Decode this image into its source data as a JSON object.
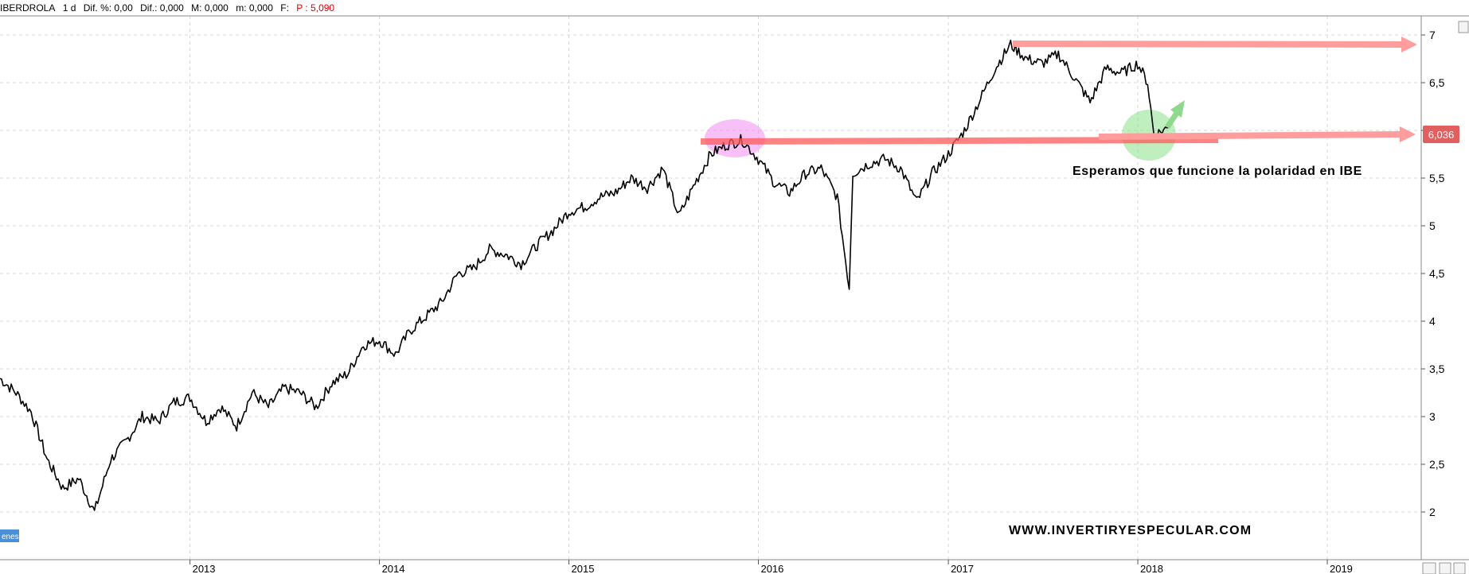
{
  "header": {
    "symbol": "IBERDROLA",
    "period": "1 d",
    "dif_pct": "Dif. %: 0,00",
    "dif": "Dif.: 0,000",
    "m": "M: 0,000",
    "m2": "m: 0,000",
    "f": "F:",
    "price": "P : 5,090"
  },
  "annotation_text": "Esperamos que funcione la polaridad en IBE",
  "watermark": "WWW.INVERTIRYESPECULAR.COM",
  "corner_label": "enes",
  "current_price_label": "6,036",
  "colors": {
    "line": "#000000",
    "resistance_arrow": "#ff9c9c",
    "support_line": "#ff5a5a",
    "pink_circle": "#f08cf0",
    "green_circle": "#7fe07f",
    "green_arrow": "#8fd98f",
    "price_tag": "#e06060",
    "grid": "#d8d8d8"
  },
  "chart_data": {
    "type": "line",
    "title": "",
    "xlabel": "",
    "ylabel": "",
    "ylim": [
      1.5,
      7.2
    ],
    "xlim": [
      "2012-01-01",
      "2019-07-01"
    ],
    "yticks": [
      "7",
      "6,5",
      "6",
      "5,5",
      "5",
      "4,5",
      "4",
      "3,5",
      "3",
      "2,5",
      "2"
    ],
    "ytick_values": [
      7,
      6.5,
      6,
      5.5,
      5,
      4.5,
      4,
      3.5,
      3,
      2.5,
      2
    ],
    "xticks": [
      "2013",
      "2014",
      "2015",
      "2016",
      "2017",
      "2018",
      "2019"
    ],
    "xtick_values": [
      "2013-01-01",
      "2014-01-01",
      "2015-01-01",
      "2016-01-01",
      "2017-01-01",
      "2018-01-01",
      "2019-01-01"
    ],
    "grid": true,
    "series": [
      {
        "x": [
          "2012-01-01",
          "2012-02-01",
          "2012-03-01",
          "2012-04-01",
          "2012-05-01",
          "2012-06-01",
          "2012-07-01",
          "2012-08-01",
          "2012-09-01",
          "2012-10-01",
          "2012-11-01",
          "2012-12-01",
          "2013-01-01",
          "2013-02-01",
          "2013-03-01",
          "2013-04-01",
          "2013-05-01",
          "2013-06-01",
          "2013-07-01",
          "2013-08-01",
          "2013-09-01",
          "2013-10-01",
          "2013-11-01",
          "2013-12-01",
          "2014-01-01",
          "2014-02-01",
          "2014-03-01",
          "2014-04-01",
          "2014-05-01",
          "2014-06-01",
          "2014-07-01",
          "2014-08-01",
          "2014-09-01",
          "2014-10-01",
          "2014-11-01",
          "2014-12-01",
          "2015-01-01",
          "2015-02-01",
          "2015-03-01",
          "2015-04-01",
          "2015-05-01",
          "2015-06-01",
          "2015-07-01",
          "2015-08-01",
          "2015-09-01",
          "2015-10-01",
          "2015-11-01",
          "2015-12-01",
          "2016-01-01",
          "2016-02-01",
          "2016-03-01",
          "2016-04-01",
          "2016-05-01",
          "2016-06-01",
          "2016-06-24",
          "2016-07-01",
          "2016-08-01",
          "2016-09-01",
          "2016-10-01",
          "2016-11-01",
          "2016-12-01",
          "2017-01-01",
          "2017-02-01",
          "2017-03-01",
          "2017-04-01",
          "2017-05-01",
          "2017-06-01",
          "2017-07-01",
          "2017-08-01",
          "2017-09-01",
          "2017-10-01",
          "2017-11-01",
          "2017-12-01",
          "2018-01-01",
          "2018-01-20",
          "2018-02-01",
          "2018-03-01"
        ],
        "values": [
          3.4,
          3.25,
          3.05,
          2.55,
          2.25,
          2.35,
          2.0,
          2.55,
          2.75,
          3.0,
          2.95,
          3.15,
          3.2,
          2.95,
          3.1,
          2.9,
          3.25,
          3.1,
          3.3,
          3.25,
          3.1,
          3.35,
          3.45,
          3.75,
          3.8,
          3.65,
          3.9,
          4.05,
          4.2,
          4.5,
          4.55,
          4.75,
          4.7,
          4.6,
          4.8,
          4.95,
          5.15,
          5.2,
          5.3,
          5.35,
          5.5,
          5.4,
          5.6,
          5.1,
          5.45,
          5.75,
          5.85,
          5.9,
          5.7,
          5.45,
          5.35,
          5.55,
          5.6,
          5.3,
          4.35,
          5.55,
          5.65,
          5.7,
          5.6,
          5.25,
          5.55,
          5.75,
          6.0,
          6.3,
          6.65,
          6.9,
          6.75,
          6.7,
          6.8,
          6.55,
          6.3,
          6.65,
          6.6,
          6.7,
          6.5,
          5.95,
          6.03
        ]
      }
    ],
    "annotations": [
      "Esperamos que funcione la polaridad en IBE"
    ],
    "current_value": 6.036
  }
}
